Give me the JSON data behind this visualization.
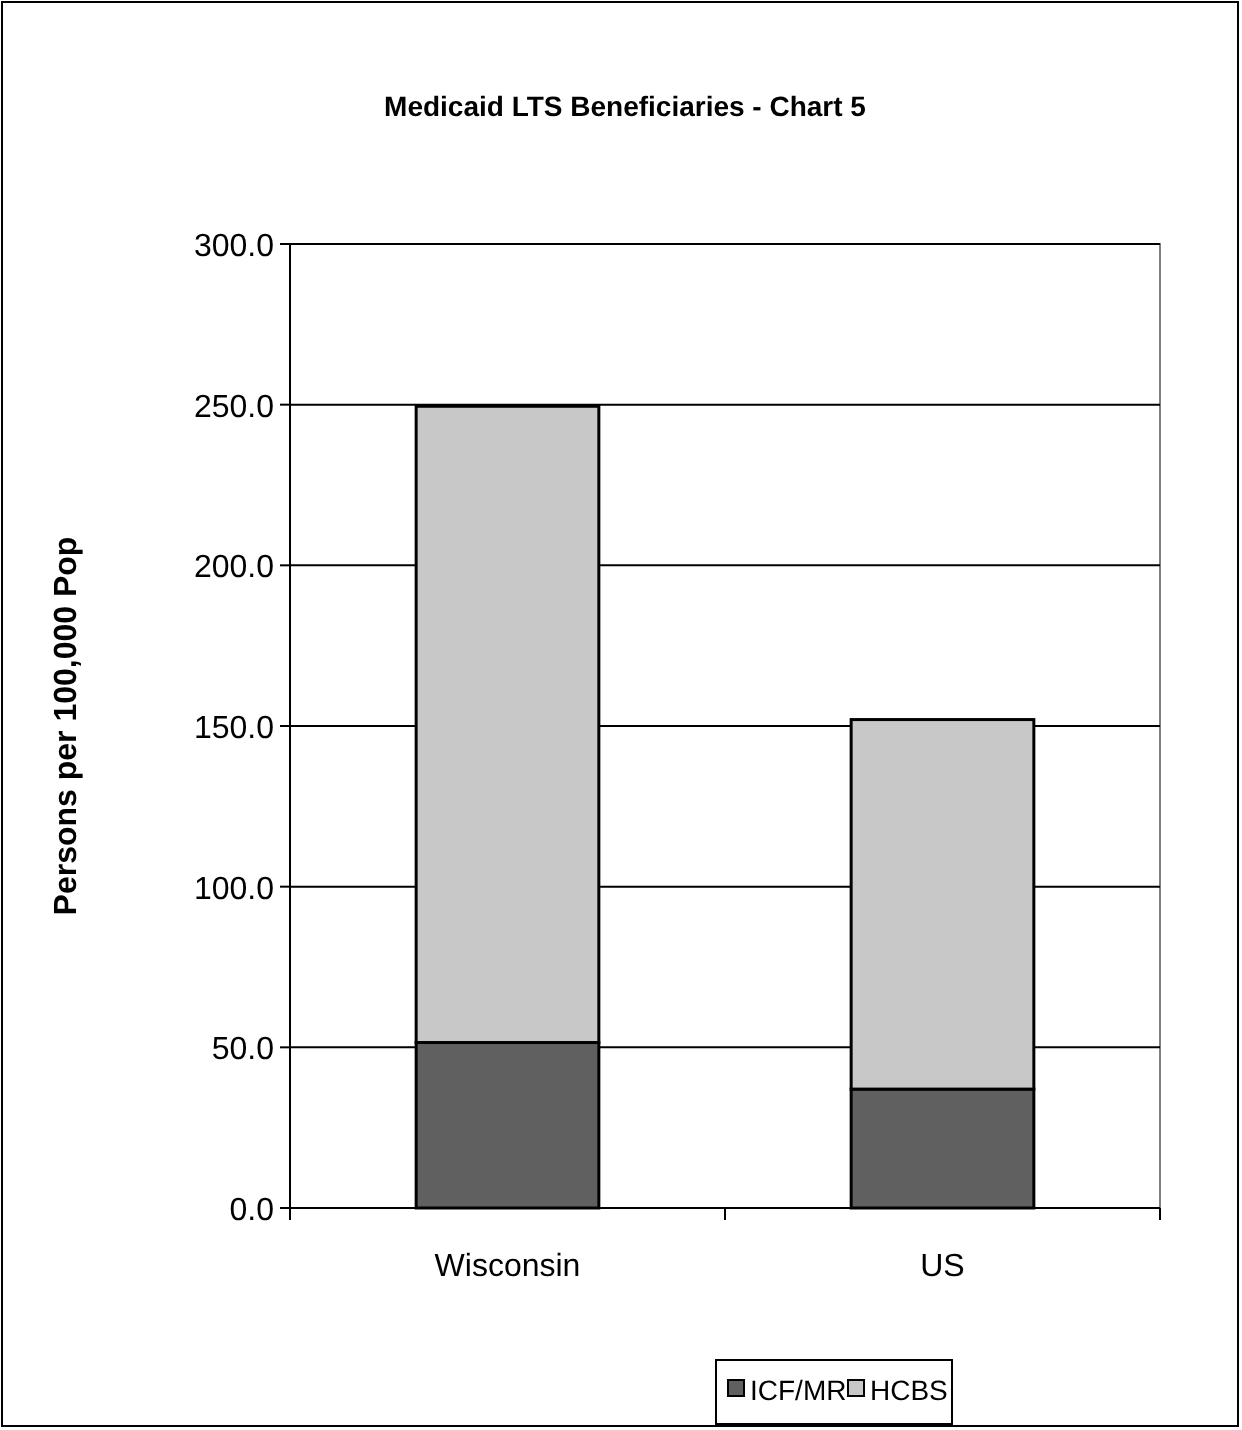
{
  "chart_data": {
    "type": "bar",
    "title": "Medicaid LTS Beneficiaries - Chart 5",
    "ylabel": "Persons per 100,000 Pop",
    "categories": [
      "Wisconsin",
      "US"
    ],
    "stacked": true,
    "series": [
      {
        "name": "ICF/MR",
        "color": "#606060",
        "values": [
          51.5,
          37
        ]
      },
      {
        "name": "HCBS",
        "color": "#c8c8c8",
        "values": [
          198,
          115
        ]
      }
    ],
    "ylim": [
      0,
      300
    ],
    "yticks": [
      {
        "value": 0,
        "label": "0.0"
      },
      {
        "value": 50,
        "label": "50.0"
      },
      {
        "value": 100,
        "label": "100.0"
      },
      {
        "value": 150,
        "label": "150.0"
      },
      {
        "value": 200,
        "label": "200.0"
      },
      {
        "value": 250,
        "label": "250.0"
      },
      {
        "value": 300,
        "label": "300.0"
      }
    ],
    "grid": "y",
    "legend": "bottom"
  }
}
